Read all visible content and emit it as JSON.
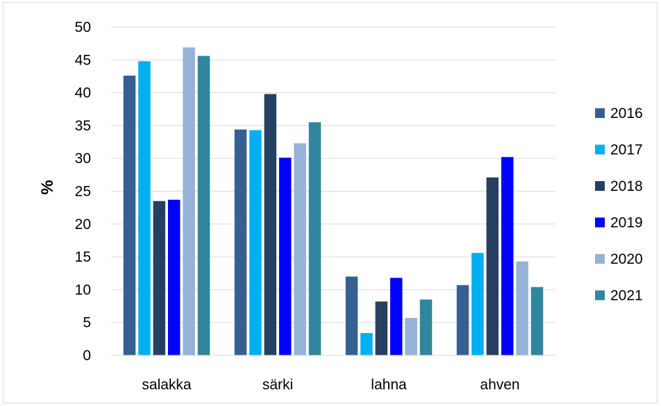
{
  "chart_data": {
    "type": "bar",
    "categories": [
      "salakka",
      "särki",
      "lahna",
      "ahven"
    ],
    "series": [
      {
        "name": "2016",
        "color": "#376092",
        "values": [
          42.6,
          34.4,
          12.0,
          10.7
        ]
      },
      {
        "name": "2017",
        "color": "#00b0f0",
        "values": [
          44.8,
          34.3,
          3.4,
          15.6
        ]
      },
      {
        "name": "2018",
        "color": "#264061",
        "values": [
          23.5,
          39.8,
          8.2,
          27.1
        ]
      },
      {
        "name": "2019",
        "color": "#0000ff",
        "values": [
          23.7,
          30.1,
          11.8,
          30.2
        ]
      },
      {
        "name": "2020",
        "color": "#95b3d7",
        "values": [
          46.9,
          32.3,
          5.7,
          14.3
        ]
      },
      {
        "name": "2021",
        "color": "#31859c",
        "values": [
          45.6,
          35.5,
          8.5,
          10.4
        ]
      }
    ],
    "title": "",
    "xlabel": "",
    "ylabel": "%",
    "ylim": [
      0,
      50
    ],
    "yticks": [
      "0",
      "5",
      "10",
      "15",
      "20",
      "25",
      "30",
      "35",
      "40",
      "45",
      "50"
    ],
    "grid": true,
    "legend": "right"
  }
}
